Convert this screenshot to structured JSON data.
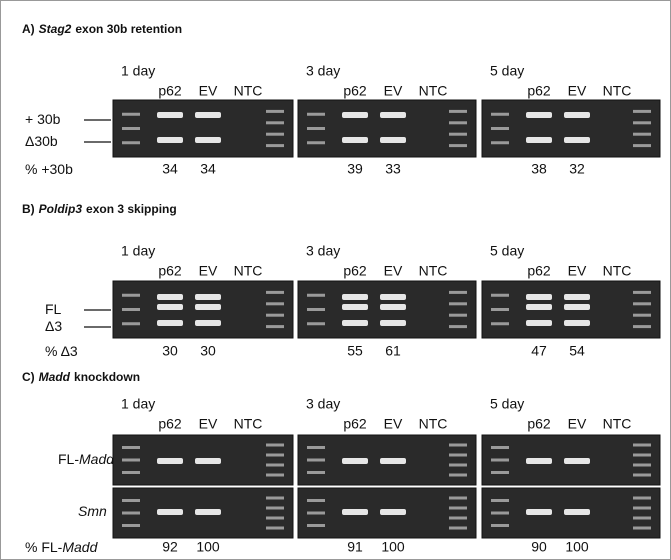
{
  "panels": [
    {
      "label": "A)",
      "gene": "Stag2",
      "title": "exon 30b retention",
      "band_labels": [
        {
          "text": "+ 30b"
        },
        {
          "text": "Δ30b"
        }
      ],
      "percent_label": {
        "text": "% +30b"
      },
      "timepoints": [
        {
          "day": "1 day",
          "lanes": [
            "p62",
            "EV",
            "NTC"
          ],
          "percent": [
            34,
            34
          ]
        },
        {
          "day": "3 day",
          "lanes": [
            "p62",
            "EV",
            "NTC"
          ],
          "percent": [
            39,
            33
          ]
        },
        {
          "day": "5 day",
          "lanes": [
            "p62",
            "EV",
            "NTC"
          ],
          "percent": [
            38,
            32
          ]
        }
      ]
    },
    {
      "label": "B)",
      "gene": "Poldip3",
      "title": "exon 3 skipping",
      "band_labels": [
        {
          "text": "FL"
        },
        {
          "text": "Δ3"
        }
      ],
      "percent_label": {
        "text": "% Δ3"
      },
      "timepoints": [
        {
          "day": "1 day",
          "lanes": [
            "p62",
            "EV",
            "NTC"
          ],
          "percent": [
            30,
            30
          ]
        },
        {
          "day": "3 day",
          "lanes": [
            "p62",
            "EV",
            "NTC"
          ],
          "percent": [
            55,
            61
          ]
        },
        {
          "day": "5 day",
          "lanes": [
            "p62",
            "EV",
            "NTC"
          ],
          "percent": [
            47,
            54
          ]
        }
      ]
    },
    {
      "label": "C)",
      "gene": "Madd",
      "title": "knockdown",
      "band_labels": [
        {
          "text": "FL-",
          "italic": "Madd"
        },
        {
          "italic": "Smn"
        }
      ],
      "percent_label": {
        "text": "% FL-",
        "italic": "Madd"
      },
      "timepoints": [
        {
          "day": "1 day",
          "lanes": [
            "p62",
            "EV",
            "NTC"
          ],
          "percent": [
            92,
            100
          ]
        },
        {
          "day": "3 day",
          "lanes": [
            "p62",
            "EV",
            "NTC"
          ],
          "percent": [
            91,
            100
          ]
        },
        {
          "day": "5 day",
          "lanes": [
            "p62",
            "EV",
            "NTC"
          ],
          "percent": [
            90,
            100
          ]
        }
      ]
    }
  ]
}
